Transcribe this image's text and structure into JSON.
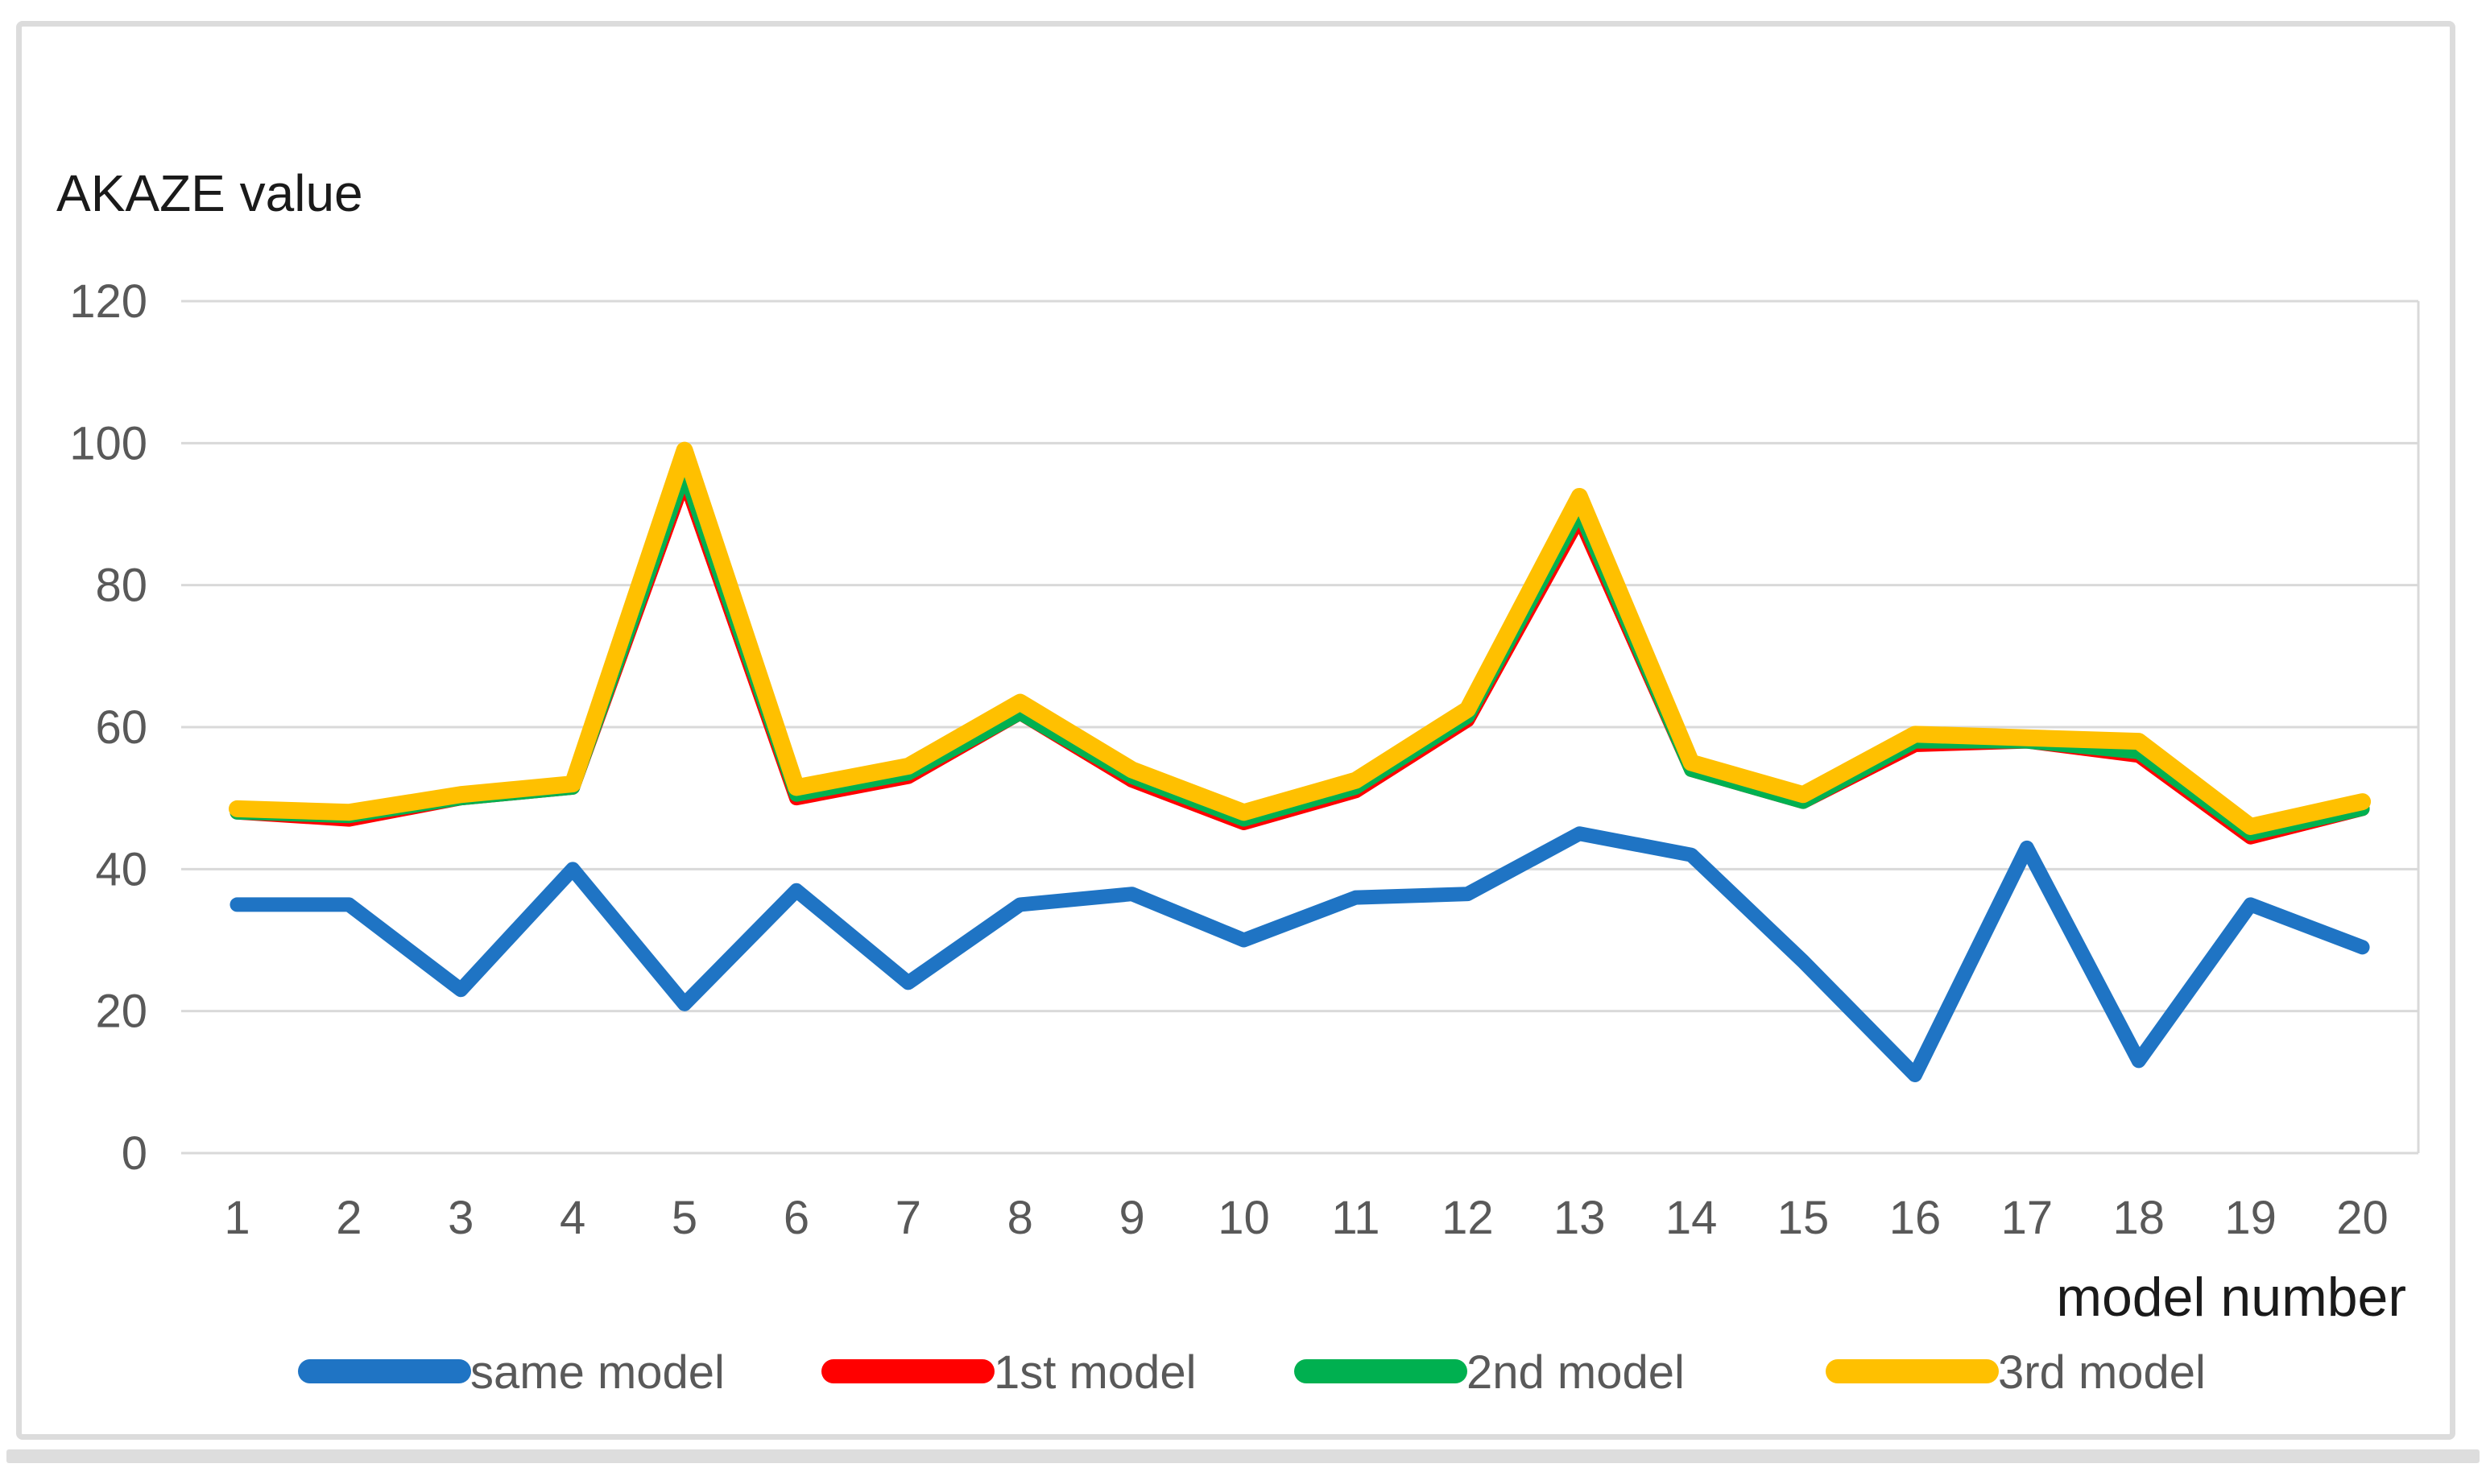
{
  "title": "AKAZE value",
  "x_axis_title": "model number",
  "colors": {
    "gridline": "#d9d9d9",
    "tick_text": "#595959",
    "title_text": "#1a1a1a",
    "frame_border": "#dcdcdc",
    "background": "#ffffff",
    "series_same_model": "#1f74c4",
    "series_1st_model": "#ff0000",
    "series_2nd_model": "#00b050",
    "series_3rd_model": "#ffc000"
  },
  "chart_data": {
    "type": "line",
    "title": "AKAZE value",
    "xlabel": "model number",
    "ylabel": "AKAZE value",
    "x": [
      1,
      2,
      3,
      4,
      5,
      6,
      7,
      8,
      9,
      10,
      11,
      12,
      13,
      14,
      15,
      16,
      17,
      18,
      19,
      20
    ],
    "ylim": [
      0,
      120
    ],
    "yticks": [
      0,
      20,
      40,
      60,
      80,
      100,
      120
    ],
    "grid": true,
    "legend_position": "bottom",
    "series": [
      {
        "name": "same model",
        "color": "#1f74c4",
        "values": [
          35,
          35,
          23,
          40,
          21,
          37,
          24,
          35,
          36.5,
          30,
          36,
          36.5,
          45,
          42,
          27,
          11,
          43,
          13,
          35,
          29
        ]
      },
      {
        "name": "1st model",
        "color": "#ff0000",
        "values": [
          48,
          47,
          50,
          51.5,
          95,
          50,
          53,
          62,
          52.5,
          46.5,
          51,
          61,
          89.5,
          54,
          49.5,
          57.5,
          58,
          56,
          44.5,
          48.5
        ]
      },
      {
        "name": "2nd model",
        "color": "#00b050",
        "values": [
          48,
          47.5,
          50,
          51.5,
          96,
          50.5,
          53.5,
          62,
          53,
          47,
          51.5,
          61.5,
          90.5,
          54,
          49.5,
          58,
          58,
          56.5,
          45,
          48.5
        ]
      },
      {
        "name": "3rd model",
        "color": "#ffc000",
        "values": [
          48.5,
          48,
          50.5,
          52,
          99,
          51.5,
          54.5,
          63.5,
          54,
          48,
          52.5,
          62.5,
          92.5,
          55,
          50.5,
          59,
          58.5,
          58,
          46,
          49.5
        ]
      }
    ]
  }
}
